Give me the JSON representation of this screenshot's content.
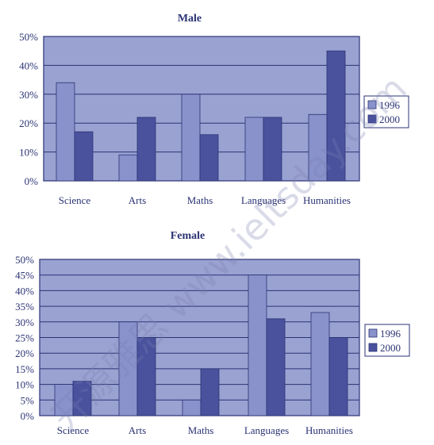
{
  "chart_data": [
    {
      "type": "bar",
      "title": "Male",
      "categories": [
        "Science",
        "Arts",
        "Maths",
        "Languages",
        "Humanities"
      ],
      "series": [
        {
          "name": "1996",
          "values": [
            34,
            9,
            30,
            22,
            23
          ]
        },
        {
          "name": "2000",
          "values": [
            17,
            22,
            16,
            22,
            45
          ]
        }
      ],
      "ylim": [
        0,
        50
      ],
      "yticks": [
        "0%",
        "10%",
        "20%",
        "30%",
        "40%",
        "50%"
      ],
      "grid": true,
      "legend_position": "right"
    },
    {
      "type": "bar",
      "title": "Female",
      "categories": [
        "Science",
        "Arts",
        "Maths",
        "Languages",
        "Humanities"
      ],
      "series": [
        {
          "name": "1996",
          "values": [
            10,
            30,
            5,
            45,
            33
          ]
        },
        {
          "name": "2000",
          "values": [
            11,
            25,
            15,
            31,
            25
          ]
        }
      ],
      "ylim": [
        0,
        50
      ],
      "yticks": [
        "0%",
        "5%",
        "10%",
        "15%",
        "20%",
        "25%",
        "30%",
        "35%",
        "40%",
        "45%",
        "50%"
      ],
      "grid": true,
      "legend_position": "right"
    }
  ],
  "colors": {
    "plot_bg": "#9aa2d2",
    "series_1996": "#8a92cc",
    "series_2000": "#4a529e",
    "frame": "#2b3374",
    "text": "#2b3374"
  },
  "watermark": "开源雅思 www.ieltsday.com"
}
